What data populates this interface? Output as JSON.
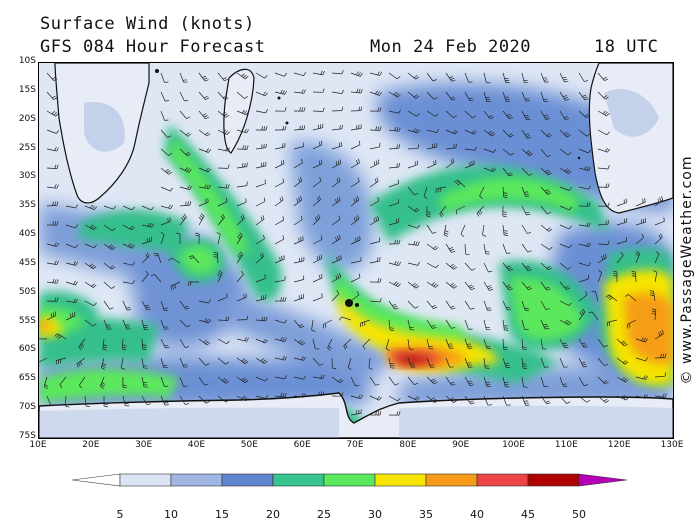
{
  "header": {
    "title": "Surface Wind (knots)",
    "model": "GFS 084 Hour Forecast",
    "date": "Mon 24 Feb 2020",
    "time": "18 UTC"
  },
  "map": {
    "lat_labels": [
      "10S",
      "15S",
      "20S",
      "25S",
      "30S",
      "35S",
      "40S",
      "45S",
      "50S",
      "55S",
      "60S",
      "65S",
      "70S",
      "75S"
    ],
    "lon_labels": [
      "10E",
      "20E",
      "30E",
      "40E",
      "50E",
      "60E",
      "70E",
      "80E",
      "90E",
      "100E",
      "110E",
      "120E",
      "130E"
    ],
    "lon_range": [
      10,
      130
    ],
    "lat_range": [
      -10,
      -75
    ],
    "land_color": "#111111",
    "ocean_base_color": "#dfe7f5"
  },
  "legend": {
    "labels": [
      "5",
      "10",
      "15",
      "20",
      "25",
      "30",
      "35",
      "40",
      "45",
      "50"
    ],
    "colors": [
      "#ffffff",
      "#dbe4f4",
      "#9fb6e0",
      "#5f86cf",
      "#36c48f",
      "#5ce85c",
      "#f7e600",
      "#f59d18",
      "#ec4545",
      "#b00000",
      "#b400b4"
    ]
  },
  "watermark": "© www.PassageWeather.com"
}
